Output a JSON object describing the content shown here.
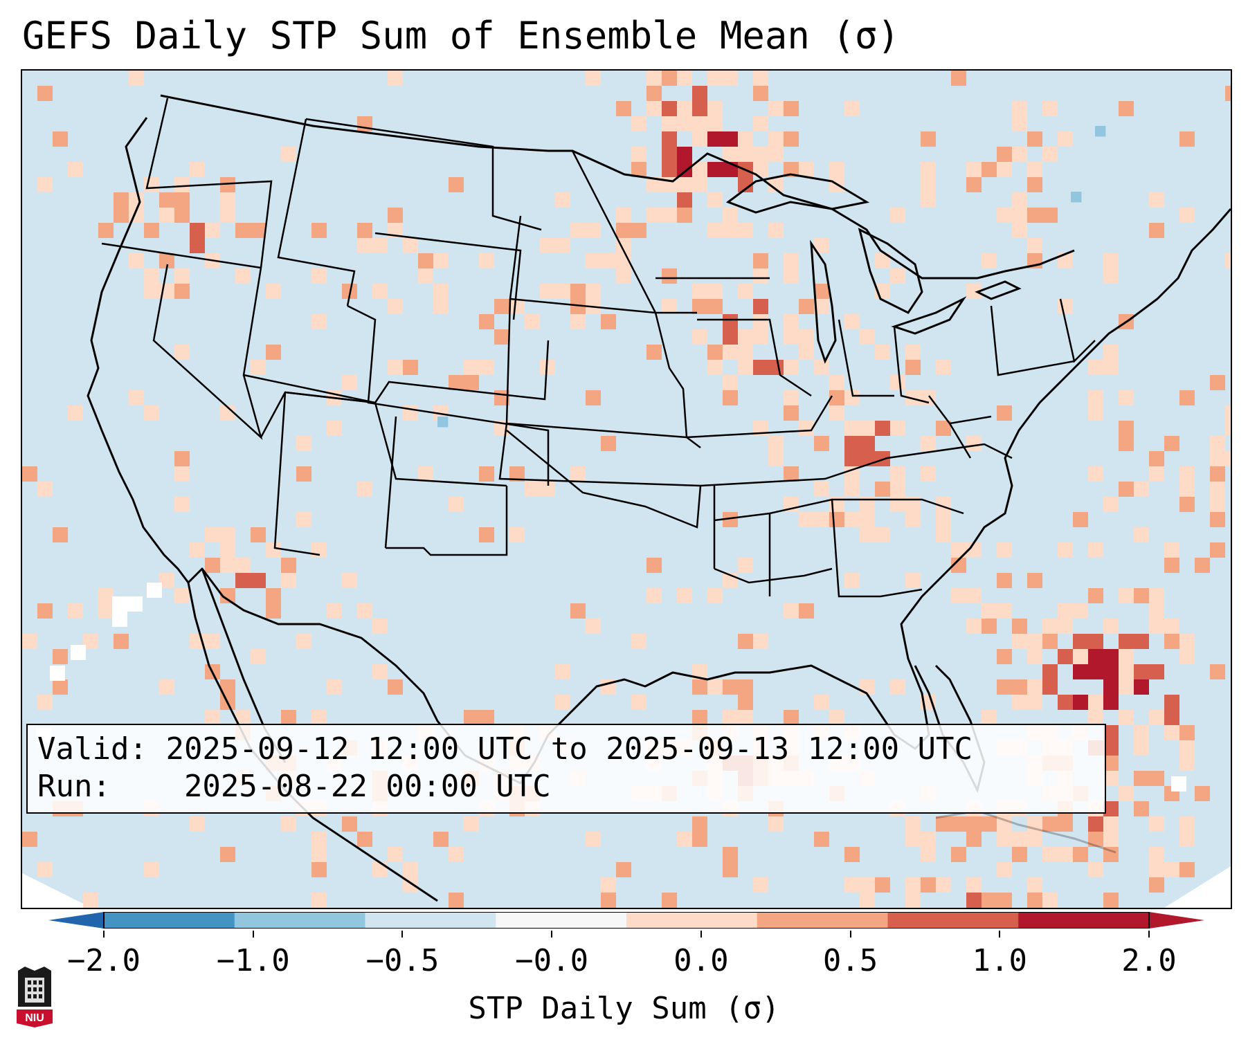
{
  "title": "GEFS Daily STP Sum of Ensemble Mean (σ)",
  "info": {
    "valid_label": "Valid:",
    "valid_value": "2025-09-12 12:00 UTC to 2025-09-13 12:00 UTC",
    "run_label": "Run:",
    "run_value": "2025-08-22 00:00 UTC"
  },
  "colorbar": {
    "label": "STP Daily Sum (σ)",
    "ticks": [
      "−2.0",
      "−1.0",
      "−0.5",
      "−0.0",
      "0.0",
      "0.5",
      "1.0",
      "2.0"
    ],
    "colors": [
      "#4393c3",
      "#92c5de",
      "#d1e5f0",
      "#f7f7f7",
      "#fddbc7",
      "#f4a582",
      "#d6604d",
      "#b2182b"
    ],
    "under_color": "#2166ac",
    "over_color": "#b2182b"
  },
  "map": {
    "background_color": "#d1e5f0",
    "boundary_color": "#000000"
  },
  "logo": {
    "text": "NIU"
  }
}
